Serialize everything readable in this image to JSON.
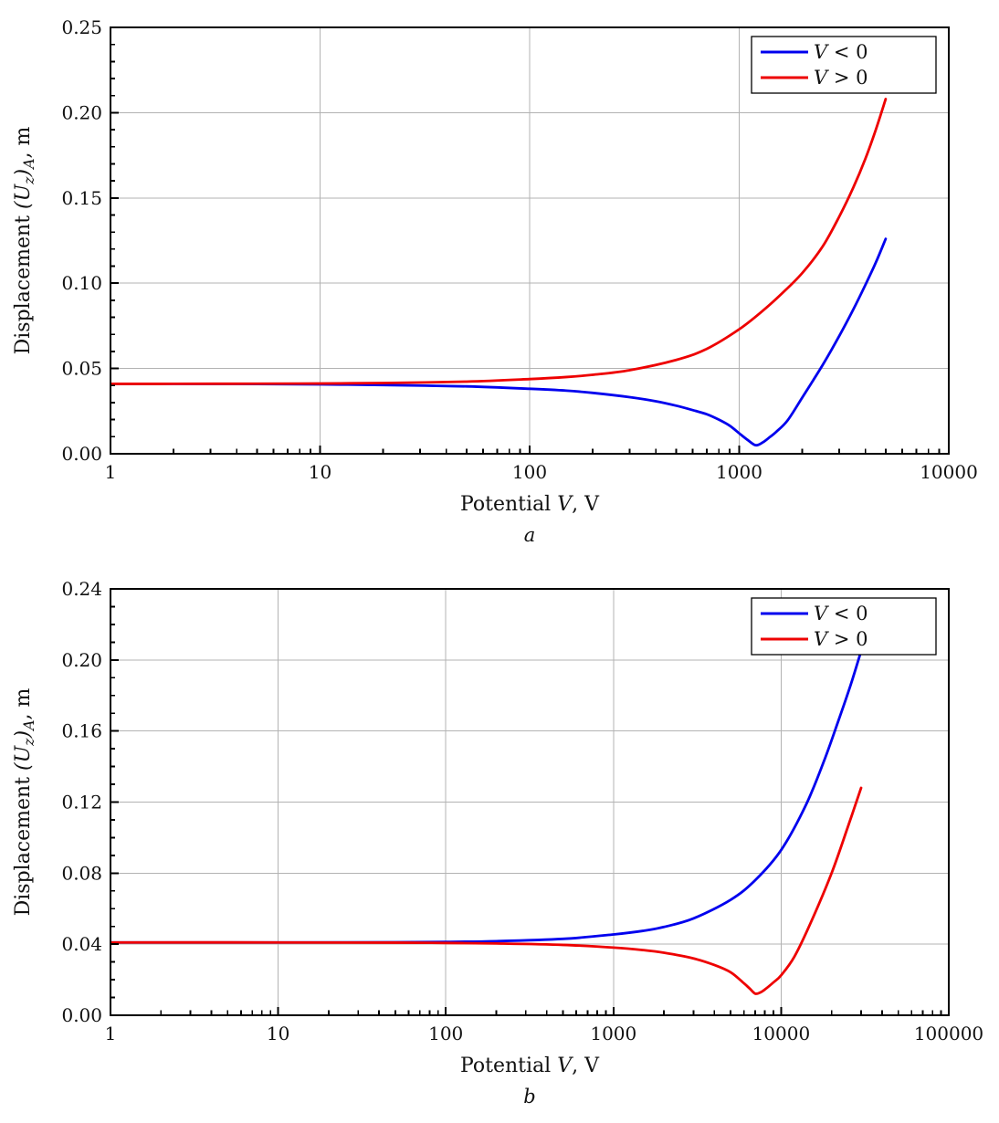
{
  "page": {
    "background": "#ffffff",
    "frame_color": "#000000",
    "grid_color": "#b3b3b3"
  },
  "chart_data": [
    {
      "type": "line",
      "sublabel": "a",
      "xlabel": "Potential $V$, V",
      "ylabel": "Displacement $(U_{z})_{A}$, m",
      "xscale": "log",
      "xlim": [
        1,
        10000
      ],
      "ylim": [
        0,
        0.25
      ],
      "ytick_step": 0.05,
      "yminor_per_major": 5,
      "xtick_labels": [
        "1",
        "10",
        "100",
        "1000",
        "10000"
      ],
      "grid": true,
      "grid_color": "#b3b3b3",
      "legend_position": "top-right",
      "series": [
        {
          "name": "$V$ < 0",
          "color": "#0000ee",
          "x": [
            1,
            2,
            5,
            10,
            20,
            50,
            100,
            150,
            200,
            300,
            400,
            500,
            600,
            700,
            800,
            900,
            1000,
            1100,
            1200,
            1300,
            1400,
            1500,
            1700,
            2000,
            2500,
            3000,
            3500,
            4000,
            4500,
            5000
          ],
          "y": [
            0.041,
            0.041,
            0.0409,
            0.0407,
            0.0403,
            0.0395,
            0.0381,
            0.037,
            0.0357,
            0.0332,
            0.0308,
            0.0282,
            0.0256,
            0.0232,
            0.02,
            0.0165,
            0.012,
            0.008,
            0.005,
            0.0068,
            0.0098,
            0.0128,
            0.0195,
            0.033,
            0.052,
            0.069,
            0.0845,
            0.099,
            0.1125,
            0.126
          ]
        },
        {
          "name": "$V$ > 0",
          "color": "#ee0000",
          "x": [
            1,
            2,
            5,
            10,
            20,
            50,
            100,
            150,
            200,
            300,
            500,
            700,
            1000,
            1300,
            1600,
            2000,
            2500,
            3000,
            3500,
            4000,
            4500,
            5000
          ],
          "y": [
            0.041,
            0.041,
            0.0411,
            0.0412,
            0.0415,
            0.0423,
            0.0438,
            0.045,
            0.0463,
            0.049,
            0.055,
            0.0615,
            0.073,
            0.084,
            0.094,
            0.106,
            0.1215,
            0.139,
            0.156,
            0.173,
            0.1905,
            0.208
          ]
        }
      ]
    },
    {
      "type": "line",
      "sublabel": "b",
      "xlabel": "Potential $V$, V",
      "ylabel": "Displacement $(U_{z})_{A}$, m",
      "xscale": "log",
      "xlim": [
        1,
        100000
      ],
      "ylim": [
        0,
        0.24
      ],
      "ytick_step": 0.04,
      "yminor_per_major": 4,
      "xtick_labels": [
        "1",
        "10",
        "100",
        "1000",
        "10000",
        "100000"
      ],
      "grid": true,
      "grid_color": "#b3b3b3",
      "legend_position": "top-right",
      "series": [
        {
          "name": "$V$ < 0",
          "color": "#0000ee",
          "x": [
            1,
            10,
            50,
            100,
            200,
            500,
            1000,
            1500,
            2000,
            3000,
            5000,
            7000,
            10000,
            14000,
            18000,
            22000,
            26000,
            30000
          ],
          "y": [
            0.041,
            0.041,
            0.0411,
            0.0413,
            0.0417,
            0.043,
            0.0455,
            0.0475,
            0.0497,
            0.0545,
            0.065,
            0.076,
            0.093,
            0.118,
            0.143,
            0.166,
            0.186,
            0.205
          ]
        },
        {
          "name": "$V$ > 0",
          "color": "#ee0000",
          "x": [
            1,
            10,
            50,
            100,
            200,
            500,
            1000,
            1500,
            2000,
            3000,
            4000,
            5000,
            6000,
            6500,
            7000,
            7500,
            8000,
            9000,
            10000,
            12000,
            15000,
            20000,
            25000,
            30000
          ],
          "y": [
            0.041,
            0.041,
            0.0409,
            0.0407,
            0.0404,
            0.0396,
            0.0381,
            0.0367,
            0.0352,
            0.032,
            0.0283,
            0.0242,
            0.018,
            0.015,
            0.0122,
            0.0128,
            0.0145,
            0.0185,
            0.0225,
            0.033,
            0.052,
            0.08,
            0.106,
            0.128
          ]
        }
      ]
    }
  ]
}
